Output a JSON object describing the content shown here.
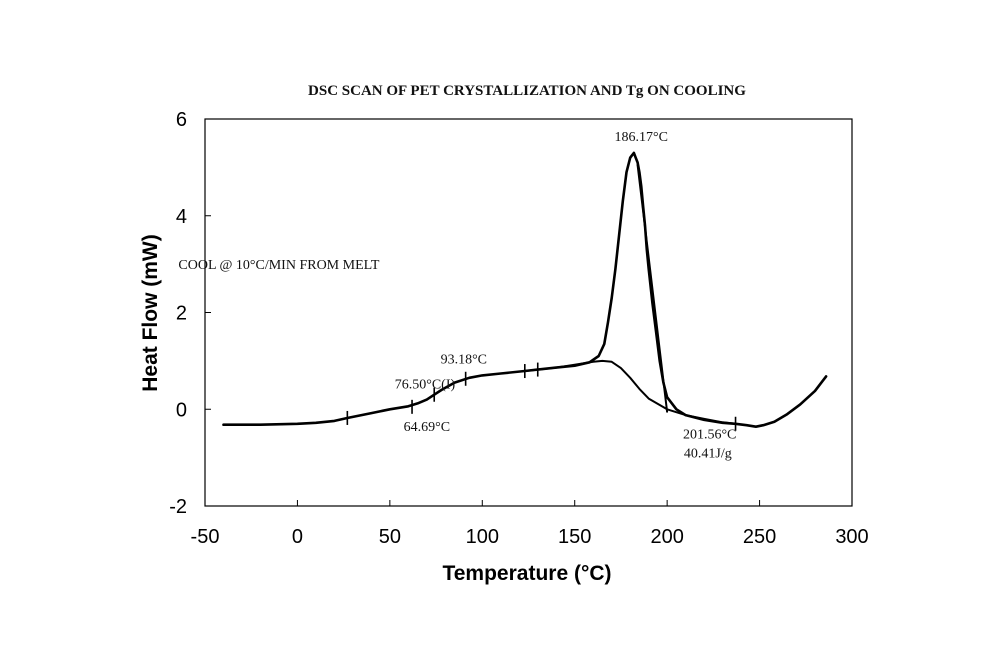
{
  "chart_data": {
    "type": "line",
    "title": "DSC SCAN OF PET CRYSTALLIZATION AND Tg ON COOLING",
    "xlabel": "Temperature (°C)",
    "ylabel": "Heat Flow (mW)",
    "xlim": [
      -50,
      300
    ],
    "ylim": [
      -2,
      6
    ],
    "xticks": [
      -50,
      0,
      50,
      100,
      150,
      200,
      250,
      300
    ],
    "yticks": [
      -2,
      0,
      2,
      4,
      6
    ],
    "grid": false,
    "series": [
      {
        "x": [
          -40,
          -20,
          0,
          10,
          20,
          27,
          40,
          50,
          60,
          65,
          70,
          74,
          78,
          85,
          93,
          100,
          110,
          123,
          130,
          140,
          150,
          158,
          163,
          166,
          168,
          170,
          172,
          174,
          176,
          178,
          180,
          181,
          182,
          183,
          184,
          185,
          186,
          187,
          188,
          189,
          190,
          192,
          194,
          196,
          198,
          200,
          205,
          210,
          220,
          230,
          237,
          243,
          248,
          252,
          258,
          265,
          272,
          280,
          286
        ],
        "values": [
          -0.32,
          -0.32,
          -0.3,
          -0.28,
          -0.24,
          -0.18,
          -0.08,
          0.0,
          0.06,
          0.12,
          0.2,
          0.3,
          0.4,
          0.55,
          0.65,
          0.7,
          0.74,
          0.79,
          0.82,
          0.86,
          0.9,
          0.97,
          1.1,
          1.35,
          1.8,
          2.3,
          2.9,
          3.6,
          4.3,
          4.9,
          5.2,
          5.25,
          5.3,
          5.2,
          5.1,
          4.9,
          4.6,
          4.2,
          3.8,
          3.3,
          2.9,
          2.2,
          1.6,
          1.0,
          0.55,
          0.25,
          0.0,
          -0.12,
          -0.22,
          -0.28,
          -0.3,
          -0.33,
          -0.36,
          -0.33,
          -0.26,
          -0.1,
          0.1,
          0.38,
          0.68
        ]
      },
      {
        "x": [
          123,
          140,
          150,
          160,
          165,
          170,
          175,
          180,
          185,
          190,
          200,
          210,
          220,
          230,
          237
        ],
        "values": [
          0.79,
          0.86,
          0.92,
          0.98,
          1.0,
          0.98,
          0.85,
          0.65,
          0.42,
          0.22,
          0.0,
          -0.12,
          -0.2,
          -0.27,
          -0.3
        ]
      },
      {
        "x": [
          184,
          200
        ],
        "values": [
          5.05,
          -0.05
        ]
      }
    ],
    "tick_marks": [
      {
        "x": 27,
        "y": -0.18
      },
      {
        "x": 62,
        "y": 0.05
      },
      {
        "x": 74,
        "y": 0.3
      },
      {
        "x": 91,
        "y": 0.63
      },
      {
        "x": 123,
        "y": 0.79
      },
      {
        "x": 130,
        "y": 0.82
      },
      {
        "x": 237,
        "y": -0.3
      }
    ],
    "annotations": [
      {
        "text": "186.17°C",
        "x": 186,
        "y": 5.55
      },
      {
        "text": "93.18°C",
        "x": 90,
        "y": 0.95
      },
      {
        "text": "76.50°C(I)",
        "x": 69,
        "y": 0.43
      },
      {
        "text": "64.69°C",
        "x": 70,
        "y": -0.45
      },
      {
        "text": "201.56°C",
        "x": 223,
        "y": -0.6
      },
      {
        "text": "40.41J/g",
        "x": 222,
        "y": -1.0
      },
      {
        "text": "COOL @ 10°C/MIN FROM MELT",
        "x": -10,
        "y": 2.9
      }
    ]
  }
}
